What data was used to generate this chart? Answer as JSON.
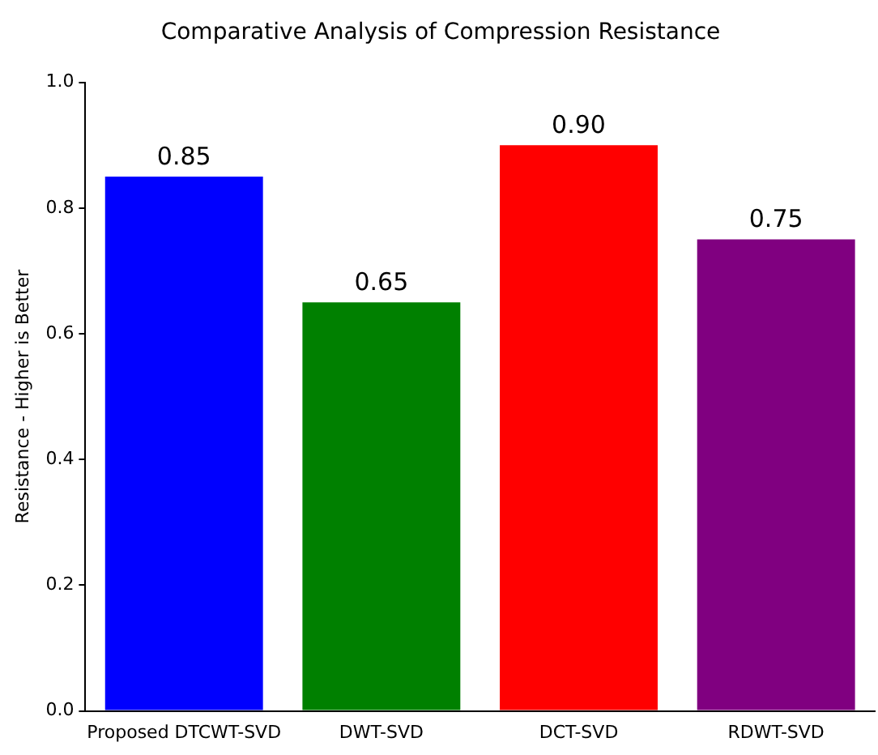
{
  "chart_data": {
    "type": "bar",
    "title": "Comparative Analysis of Compression Resistance",
    "ylabel": "Resistance - Higher is Better",
    "categories": [
      "Proposed DTCWT-SVD",
      "DWT-SVD",
      "DCT-SVD",
      "RDWT-SVD"
    ],
    "values": [
      0.85,
      0.65,
      0.9,
      0.75
    ],
    "colors": [
      "#0000ff",
      "#008000",
      "#ff0000",
      "#800080"
    ],
    "value_labels": [
      "0.85",
      "0.65",
      "0.90",
      "0.75"
    ],
    "ylim": [
      0,
      1
    ],
    "yticks": [
      {
        "value": 0,
        "label": "0.0"
      },
      {
        "value": 0.2,
        "label": "0.2"
      },
      {
        "value": 0.4,
        "label": "0.4"
      },
      {
        "value": 0.6,
        "label": "0.6"
      },
      {
        "value": 0.8,
        "label": "0.8"
      },
      {
        "value": 1,
        "label": "1.0"
      }
    ],
    "grid": false,
    "legend": false
  }
}
